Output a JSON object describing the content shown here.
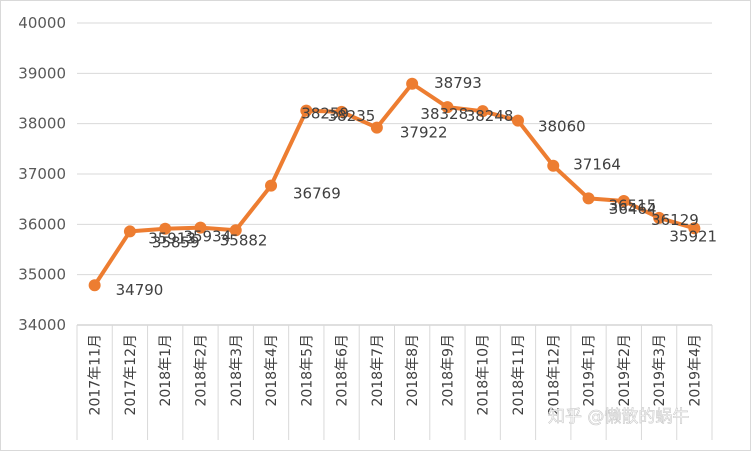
{
  "watermark": "知乎 @懒散的蜗牛",
  "colors": {
    "series": "#ED7D31",
    "grid": "#D9D9D9"
  },
  "chart_data": {
    "type": "line",
    "title": "",
    "xlabel": "",
    "ylabel": "",
    "ylim": [
      34000,
      40000
    ],
    "yticks": [
      34000,
      35000,
      36000,
      37000,
      38000,
      39000,
      40000
    ],
    "grid": true,
    "legend": "none",
    "categories": [
      "2017年11月",
      "2017年12月",
      "2018年1月",
      "2018年2月",
      "2018年3月",
      "2018年4月",
      "2018年5月",
      "2018年6月",
      "2018年7月",
      "2018年8月",
      "2018年9月",
      "2018年10月",
      "2018年11月",
      "2018年12月",
      "2019年1月",
      "2019年2月",
      "2019年3月",
      "2019年4月"
    ],
    "series": [
      {
        "values": [
          34790,
          35859,
          35913,
          35934,
          35882,
          36769,
          38259,
          38235,
          37922,
          38793,
          38328,
          38248,
          38060,
          37164,
          36515,
          36464,
          36129,
          35921
        ]
      }
    ]
  }
}
